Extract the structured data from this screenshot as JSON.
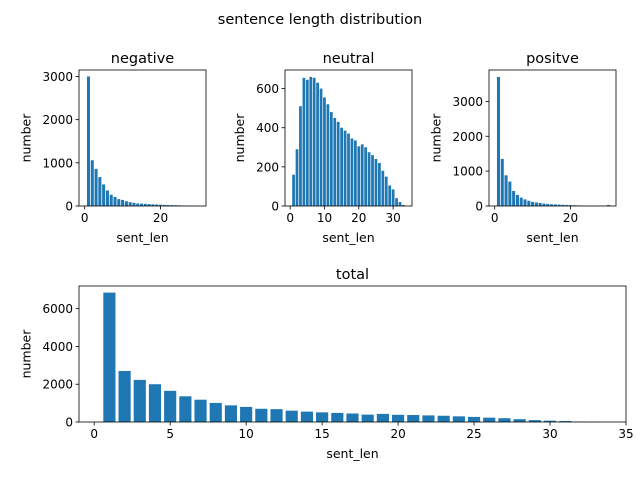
{
  "figure": {
    "suptitle": "sentence length distribution"
  },
  "chart_data": [
    {
      "type": "bar",
      "title": "negative",
      "xlabel": "sent_len",
      "ylabel": "number",
      "xlim": [
        -1.5,
        32
      ],
      "ylim": [
        0,
        3150
      ],
      "xticks": [
        0,
        20
      ],
      "yticks": [
        0,
        1000,
        2000,
        3000
      ],
      "color": "#1f77b4",
      "x": [
        1,
        2,
        3,
        4,
        5,
        6,
        7,
        8,
        9,
        10,
        11,
        12,
        13,
        14,
        15,
        16,
        17,
        18,
        19,
        20,
        21,
        22,
        23,
        24,
        25,
        26,
        27,
        28,
        29,
        30
      ],
      "values": [
        3000,
        1060,
        860,
        670,
        500,
        360,
        260,
        210,
        160,
        140,
        110,
        90,
        75,
        60,
        55,
        50,
        45,
        40,
        35,
        30,
        25,
        22,
        20,
        18,
        15,
        12,
        10,
        8,
        6,
        5
      ]
    },
    {
      "type": "bar",
      "title": "neutral",
      "xlabel": "sent_len",
      "ylabel": "number",
      "xlim": [
        -1.5,
        35.5
      ],
      "ylim": [
        0,
        695
      ],
      "xticks": [
        0,
        10,
        20,
        30
      ],
      "yticks": [
        0,
        200,
        400,
        600
      ],
      "color": "#1f77b4",
      "x": [
        1,
        2,
        3,
        4,
        5,
        6,
        7,
        8,
        9,
        10,
        11,
        12,
        13,
        14,
        15,
        16,
        17,
        18,
        19,
        20,
        21,
        22,
        23,
        24,
        25,
        26,
        27,
        28,
        29,
        30,
        31,
        32,
        33
      ],
      "values": [
        160,
        290,
        510,
        655,
        645,
        660,
        655,
        630,
        600,
        555,
        520,
        480,
        450,
        430,
        400,
        385,
        370,
        345,
        335,
        305,
        315,
        300,
        275,
        260,
        240,
        220,
        180,
        150,
        105,
        85,
        40,
        20,
        5
      ]
    },
    {
      "type": "bar",
      "title": "positve",
      "xlabel": "sent_len",
      "ylabel": "number",
      "xlim": [
        -1.5,
        32
      ],
      "ylim": [
        0,
        3900
      ],
      "xticks": [
        0,
        20
      ],
      "yticks": [
        0,
        1000,
        2000,
        3000
      ],
      "color": "#1f77b4",
      "x": [
        1,
        2,
        3,
        4,
        5,
        6,
        7,
        8,
        9,
        10,
        11,
        12,
        13,
        14,
        15,
        16,
        17,
        18,
        19,
        20,
        21,
        22,
        23,
        24,
        25,
        26,
        27,
        28,
        29,
        30
      ],
      "values": [
        3700,
        1350,
        880,
        700,
        430,
        320,
        240,
        190,
        150,
        120,
        100,
        85,
        70,
        60,
        50,
        45,
        40,
        35,
        30,
        25,
        20,
        18,
        15,
        12,
        10,
        8,
        6,
        5,
        4,
        30
      ]
    },
    {
      "type": "bar",
      "title": "total",
      "xlabel": "sent_len",
      "ylabel": "number",
      "xlim": [
        -1,
        35
      ],
      "ylim": [
        0,
        7200
      ],
      "xticks": [
        0,
        5,
        10,
        15,
        20,
        25,
        30,
        35
      ],
      "yticks": [
        0,
        2000,
        4000,
        6000
      ],
      "color": "#1f77b4",
      "x": [
        1,
        2,
        3,
        4,
        5,
        6,
        7,
        8,
        9,
        10,
        11,
        12,
        13,
        14,
        15,
        16,
        17,
        18,
        19,
        20,
        21,
        22,
        23,
        24,
        25,
        26,
        27,
        28,
        29,
        30,
        31,
        32,
        33
      ],
      "values": [
        6850,
        2700,
        2230,
        2000,
        1650,
        1360,
        1180,
        1010,
        880,
        800,
        700,
        680,
        600,
        550,
        510,
        480,
        450,
        390,
        430,
        380,
        370,
        350,
        330,
        300,
        270,
        230,
        200,
        150,
        100,
        70,
        50,
        20,
        10
      ]
    }
  ]
}
